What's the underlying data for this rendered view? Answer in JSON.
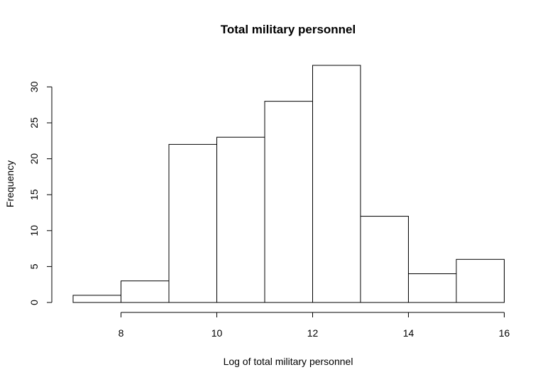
{
  "chart_data": {
    "type": "bar",
    "title": "Total military personnel",
    "xlabel": "Log of total military personnel",
    "ylabel": "Frequency",
    "bins": [
      {
        "start": 7,
        "end": 8,
        "count": 1
      },
      {
        "start": 8,
        "end": 9,
        "count": 3
      },
      {
        "start": 9,
        "end": 10,
        "count": 22
      },
      {
        "start": 10,
        "end": 11,
        "count": 23
      },
      {
        "start": 11,
        "end": 12,
        "count": 28
      },
      {
        "start": 12,
        "end": 13,
        "count": 33
      },
      {
        "start": 13,
        "end": 14,
        "count": 12
      },
      {
        "start": 14,
        "end": 15,
        "count": 4
      },
      {
        "start": 15,
        "end": 16,
        "count": 6
      }
    ],
    "xlim": [
      7,
      16
    ],
    "ylim": [
      0,
      33
    ],
    "x_ticks": [
      "8",
      "10",
      "12",
      "14",
      "16"
    ],
    "y_ticks": [
      "0",
      "5",
      "10",
      "15",
      "20",
      "25",
      "30"
    ],
    "grid": false,
    "legend": "none"
  }
}
